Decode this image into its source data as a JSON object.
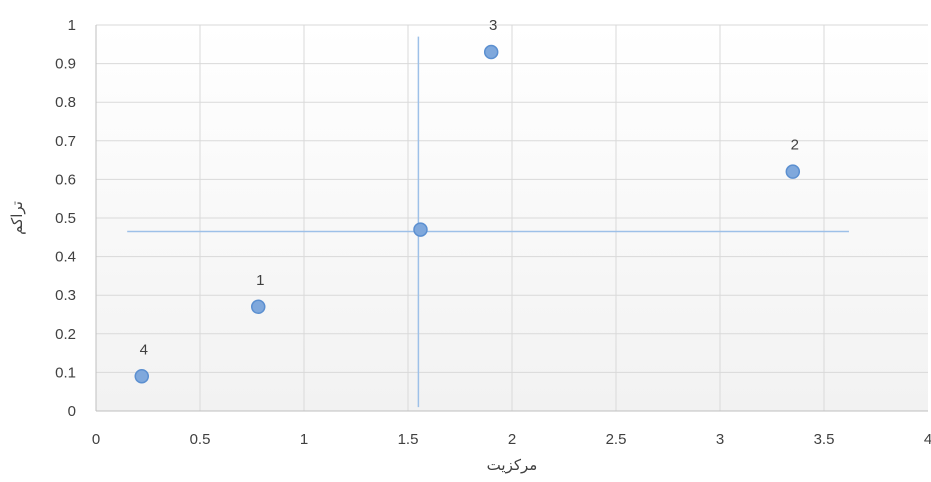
{
  "chart_data": {
    "type": "scatter",
    "xlabel": "مرکزیت",
    "ylabel": "تراکم",
    "xlim": [
      0,
      4
    ],
    "ylim": [
      0,
      1
    ],
    "x_ticks": [
      "0",
      "0.5",
      "1",
      "1.5",
      "2",
      "2.5",
      "3",
      "3.5",
      "4"
    ],
    "y_ticks": [
      "0",
      "0.1",
      "0.2",
      "0.3",
      "0.4",
      "0.5",
      "0.6",
      "0.7",
      "0.8",
      "0.9",
      "1"
    ],
    "grid": true,
    "series": [
      {
        "points": [
          {
            "x": 0.78,
            "y": 0.27,
            "label": "1"
          },
          {
            "x": 3.35,
            "y": 0.62,
            "label": "2"
          },
          {
            "x": 1.9,
            "y": 0.93,
            "label": "3"
          },
          {
            "x": 0.22,
            "y": 0.09,
            "label": "4"
          },
          {
            "x": 1.56,
            "y": 0.47,
            "label": ""
          }
        ]
      }
    ],
    "reference_lines": {
      "vertical_x": 1.55,
      "horizontal_y": 0.465
    },
    "colors": {
      "marker_fill": "#7fa8dc",
      "marker_stroke": "#5b8fd0",
      "reference_line": "#9dc0e8",
      "grid": "#d9d9d9",
      "axis": "#bfbfbf"
    }
  }
}
